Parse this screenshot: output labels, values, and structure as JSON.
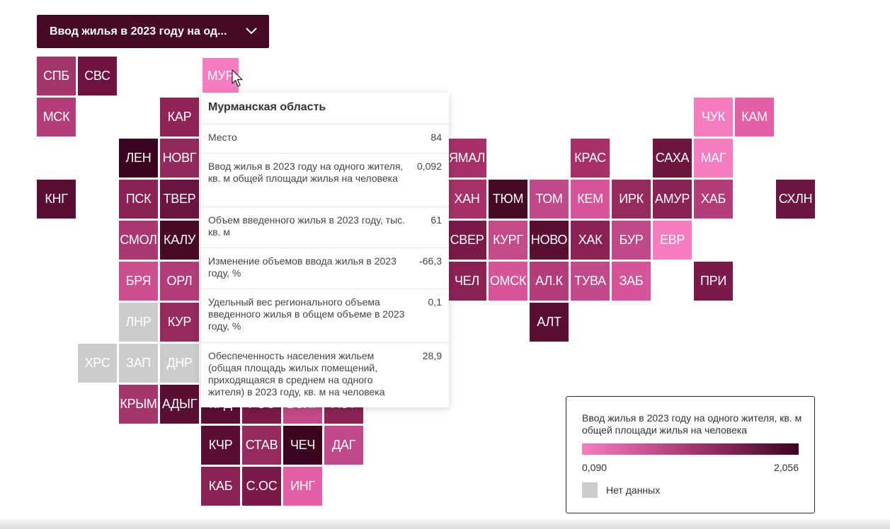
{
  "dropdown": {
    "label": "Ввод жилья в 2023 году на од...",
    "icon": "chevron-down-icon"
  },
  "colors": {
    "dark": "#470a25",
    "nodata": "#cccccc",
    "scale": [
      "#f77cc0",
      "#a8386f",
      "#3d0420"
    ]
  },
  "tiles": [
    {
      "label": "СПБ",
      "color": "#a5366c"
    },
    {
      "label": "СВС",
      "color": "#6f1240"
    },
    {
      "label": "МУР",
      "color": "#f77cc0",
      "selected": true
    },
    {
      "label": "МСК",
      "color": "#b23d78"
    },
    {
      "label": "КАР",
      "color": "#8f2557"
    },
    {
      "label": "ЧУК",
      "color": "#f77cc0"
    },
    {
      "label": "КАМ",
      "color": "#e55fa7"
    },
    {
      "label": "ЛЕН",
      "color": "#3d0420"
    },
    {
      "label": "НОВГ",
      "color": "#932a5c"
    },
    {
      "label": "ЯМАЛ",
      "color": "#a53168"
    },
    {
      "label": "КРАС",
      "color": "#a53168"
    },
    {
      "label": "САХА",
      "color": "#6e1540"
    },
    {
      "label": "МАГ",
      "color": "#f77cc0"
    },
    {
      "label": "КНГ",
      "color": "#5a0e33"
    },
    {
      "label": "ПСК",
      "color": "#8a2353"
    },
    {
      "label": "ТВЕР",
      "color": "#6a1640"
    },
    {
      "label": "ХАН",
      "color": "#a53168"
    },
    {
      "label": "ТЮМ",
      "color": "#470a25"
    },
    {
      "label": "ТОМ",
      "color": "#c04a89"
    },
    {
      "label": "КЕМ",
      "color": "#d65599"
    },
    {
      "label": "ИРК",
      "color": "#952a5d"
    },
    {
      "label": "АМУР",
      "color": "#8a2353"
    },
    {
      "label": "ХАБ",
      "color": "#b23d78"
    },
    {
      "label": "СХЛН",
      "color": "#6a1640"
    },
    {
      "label": "СМОЛ",
      "color": "#a8386f"
    },
    {
      "label": "КАЛУ",
      "color": "#470a25"
    },
    {
      "label": "СВЕР",
      "color": "#7a1a48"
    },
    {
      "label": "КУРГ",
      "color": "#c44a88"
    },
    {
      "label": "НОВО",
      "color": "#5a0e33"
    },
    {
      "label": "ХАК",
      "color": "#8a2353"
    },
    {
      "label": "БУР",
      "color": "#c04a89"
    },
    {
      "label": "ЕВР",
      "color": "#f77cc0"
    },
    {
      "label": "БРЯ",
      "color": "#cc4f90"
    },
    {
      "label": "ОРЛ",
      "color": "#b23d78"
    },
    {
      "label": "ЧЕЛ",
      "color": "#8a2353"
    },
    {
      "label": "ОМСК",
      "color": "#d65599"
    },
    {
      "label": "АЛ.К",
      "color": "#b23d78"
    },
    {
      "label": "ТУВА",
      "color": "#c04a89"
    },
    {
      "label": "ЗАБ",
      "color": "#d65599"
    },
    {
      "label": "ПРИ",
      "color": "#7a1a48"
    },
    {
      "label": "ЛНР",
      "color": "#cccccc"
    },
    {
      "label": "КУР",
      "color": "#952a5d"
    },
    {
      "label": "АЛТ",
      "color": "#5a0e33"
    },
    {
      "label": "ХРС",
      "color": "#cccccc"
    },
    {
      "label": "ЗАП",
      "color": "#cccccc"
    },
    {
      "label": "ДНР",
      "color": "#cccccc"
    },
    {
      "label": "КРЫМ",
      "color": "#a5366c"
    },
    {
      "label": "АДЫГ",
      "color": "#5a0e33"
    },
    {
      "label": "КРД",
      "color": "#5a0e33"
    },
    {
      "label": "РОС",
      "color": "#7a1a48"
    },
    {
      "label": "ВОЛГ",
      "color": "#c44a88"
    },
    {
      "label": "АСТ",
      "color": "#8a2353"
    },
    {
      "label": "КЧР",
      "color": "#5a0e33"
    },
    {
      "label": "СТАВ",
      "color": "#952a5d"
    },
    {
      "label": "ЧЕЧ",
      "color": "#3d0420"
    },
    {
      "label": "ДАГ",
      "color": "#c04a89"
    },
    {
      "label": "КАБ",
      "color": "#8a2353"
    },
    {
      "label": "С.ОС",
      "color": "#7a1a48"
    },
    {
      "label": "ИНГ",
      "color": "#e55fa7"
    }
  ],
  "tooltip": {
    "title": "Мурманская область",
    "rows": [
      {
        "label": "Место",
        "value": "84"
      },
      {
        "label": "Ввод жилья в 2023 году на одного жителя, кв. м общей площади жилья на человека",
        "value": "0,092"
      },
      {
        "label": "Объем введенного жилья в 2023 году, тыс. кв. м",
        "value": "61"
      },
      {
        "label": "Изменение объемов ввода жилья в 2023 году, %",
        "value": "-66,3"
      },
      {
        "label": "Удельный вес регионального объема введенного жилья в общем объеме в 2023 году, %",
        "value": "0,1"
      },
      {
        "label": "Обеспеченность населения жильем (общая площадь жилых помещений, приходящаяся в среднем на одного жителя) в 2023 году, кв. м на человека",
        "value": "28,9"
      }
    ]
  },
  "legend": {
    "title": "Ввод жилья в 2023 году на одного жителя, кв. м общей площади жилья на человека",
    "min": "0,090",
    "max": "2,056",
    "nodata": "Нет данных"
  }
}
